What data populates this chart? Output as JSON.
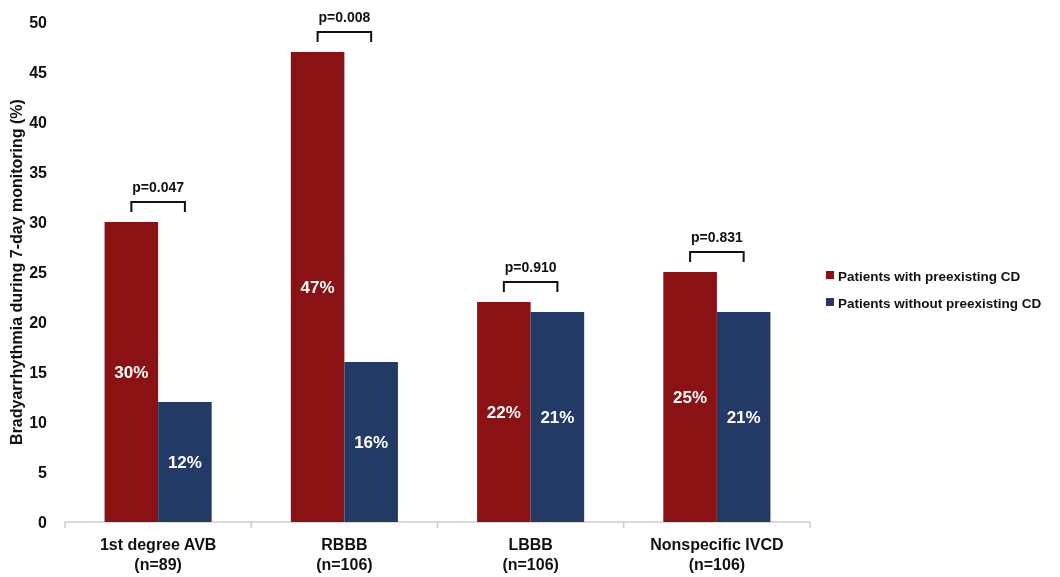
{
  "chart_data": {
    "type": "bar",
    "ylabel": "Bradyarrhythmia during 7-day monitoring (%)",
    "categories": [
      "1st degree AVB\n(n=89)",
      "RBBB\n(n=106)",
      "LBBB\n(n=106)",
      "Nonspecific IVCD\n(n=106)"
    ],
    "series": [
      {
        "name": "Patients with preexisting CD",
        "color": "#8b1214",
        "values": [
          30,
          47,
          22,
          25
        ],
        "value_labels": [
          "30%",
          "47%",
          "22%",
          "25%"
        ]
      },
      {
        "name": "Patients without preexisting CD",
        "color": "#243a66",
        "values": [
          12,
          16,
          21,
          21
        ],
        "value_labels": [
          "12%",
          "16%",
          "21%",
          "21%"
        ]
      }
    ],
    "ylim": [
      0,
      50
    ],
    "yticks": [
      0,
      5,
      10,
      15,
      20,
      25,
      30,
      35,
      40,
      45,
      50
    ],
    "grid": false,
    "legend": "right",
    "annotations": [
      "p=0.047",
      "p=0.008",
      "p=0.910",
      "p=0.831"
    ]
  }
}
